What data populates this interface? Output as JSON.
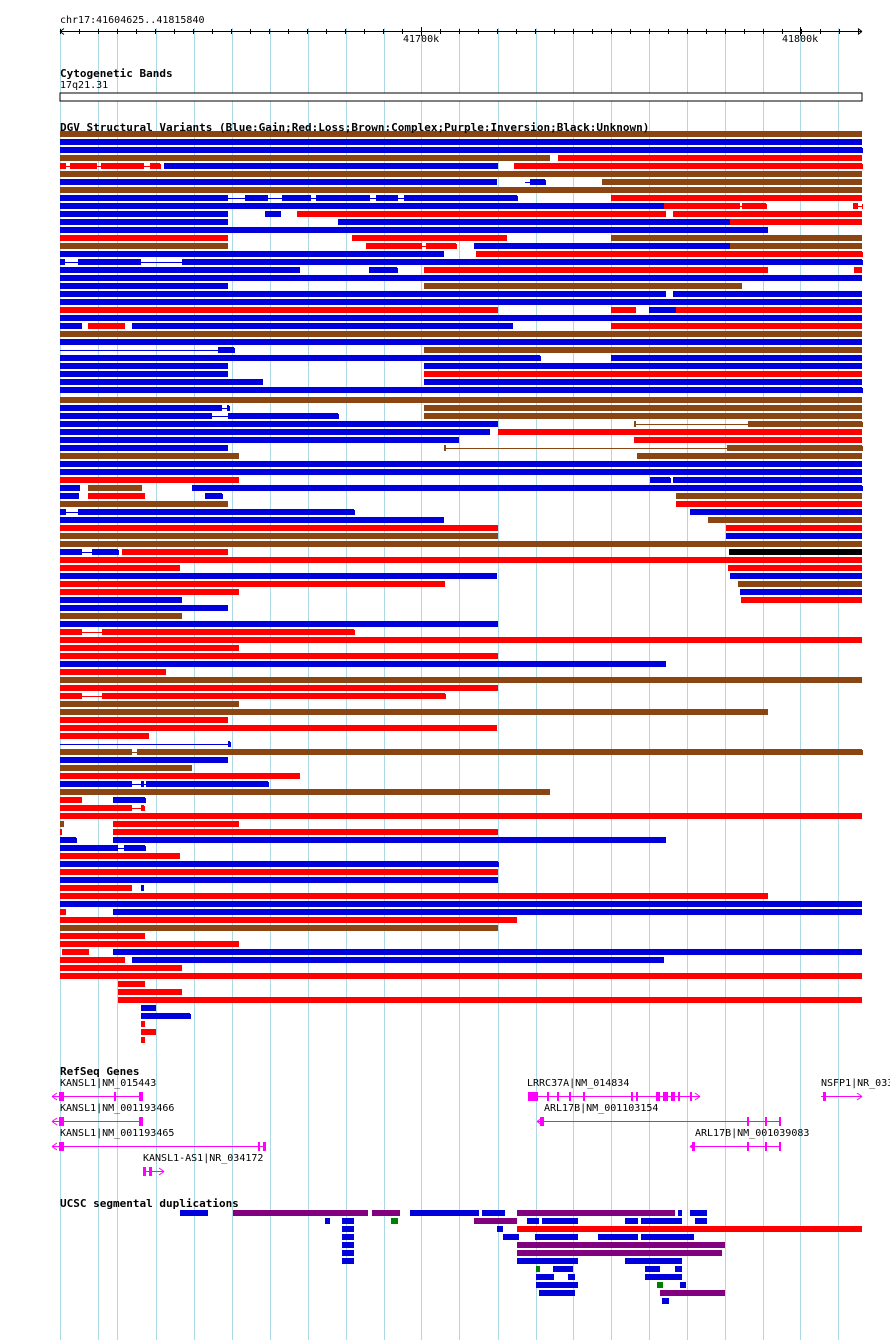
{
  "ruler": {
    "location": "chr17:41604625..41815840",
    "ticks": [
      "41700k",
      "41800k"
    ]
  },
  "tracks": {
    "cytoband": {
      "title": "Cytogenetic Bands",
      "band": "17q21.31"
    },
    "dgv": {
      "title": "DGV Structural Variants (Blue:Gain;Red:Loss;Brown:Complex;Purple:Inversion;Black:Unknown)"
    },
    "refseq": {
      "title": "RefSeq Genes",
      "genes": [
        {
          "label": "KANSL1|NM_015443"
        },
        {
          "label": "KANSL1|NM_001193466"
        },
        {
          "label": "KANSL1|NM_001193465"
        },
        {
          "label": "KANSL1-AS1|NR_034172"
        },
        {
          "label": "LRRC37A|NM_014834"
        },
        {
          "label": "ARL17B|NM_001103154"
        },
        {
          "label": "ARL17B|NM_001039083"
        },
        {
          "label": "NSFP1|NR_033"
        }
      ]
    },
    "segdup": {
      "title": "UCSC segmental duplications"
    }
  },
  "colors": {
    "gain": "#0000dd",
    "loss": "#ff0000",
    "complex": "#8b4513",
    "inversion": "#800080",
    "unknown": "#000000",
    "gene": "#ff00ff",
    "grid": "#add8e6",
    "segdup_green": "#008000"
  }
}
